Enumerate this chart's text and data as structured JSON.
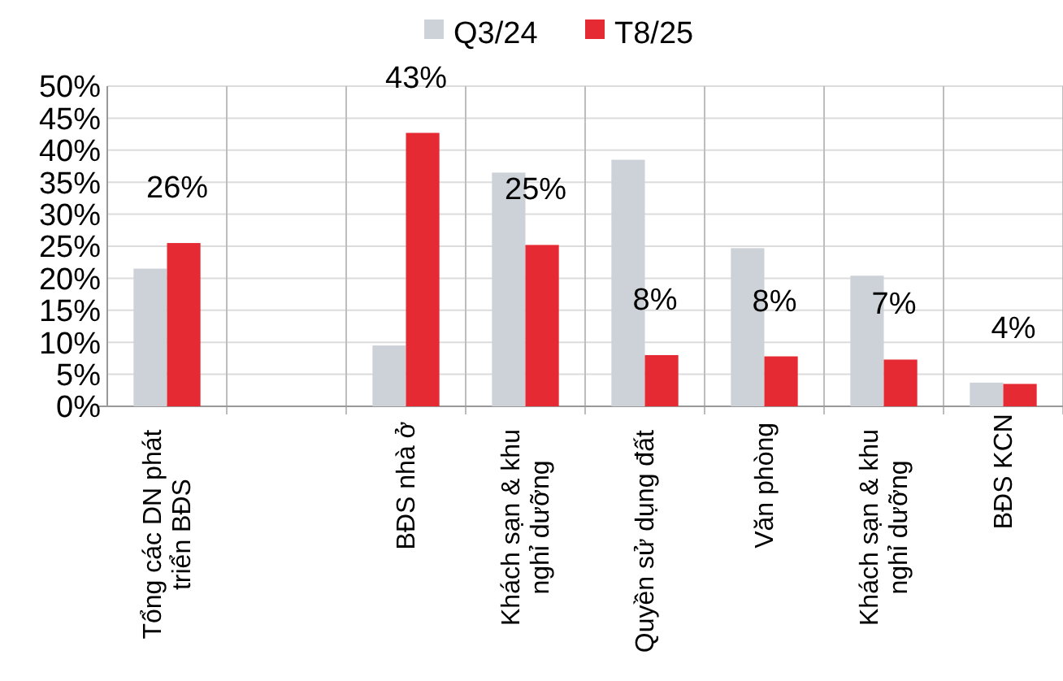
{
  "chart_data": {
    "type": "bar",
    "categories": [
      "Tổng các DN phát triển BĐS",
      null,
      "BĐS nhà ở",
      "Khách sạn & khu nghỉ dưỡng",
      "Quyền sử dụng đất",
      "Văn phòng",
      "Khách sạn & khu nghỉ dưỡng",
      "BĐS KCN"
    ],
    "series": [
      {
        "name": "Q3/24",
        "color": "#cdd1d8",
        "values": [
          21.5,
          null,
          9.5,
          36.5,
          38.5,
          24.7,
          20.4,
          3.7
        ]
      },
      {
        "name": "T8/25",
        "color": "#e52a33",
        "values": [
          25.5,
          null,
          42.7,
          25.2,
          8.0,
          7.8,
          7.3,
          3.5
        ],
        "value_labels": [
          "26%",
          null,
          "43%",
          "25%",
          "8%",
          "8%",
          "7%",
          "4%"
        ]
      }
    ],
    "ylim": [
      0,
      50
    ],
    "yticks": [
      {
        "value": 0,
        "label": "0%"
      },
      {
        "value": 5,
        "label": "5%"
      },
      {
        "value": 10,
        "label": "10%"
      },
      {
        "value": 15,
        "label": "15%"
      },
      {
        "value": 20,
        "label": "20%"
      },
      {
        "value": 25,
        "label": "25%"
      },
      {
        "value": 30,
        "label": "30%"
      },
      {
        "value": 35,
        "label": "35%"
      },
      {
        "value": 40,
        "label": "40%"
      },
      {
        "value": 45,
        "label": "45%"
      },
      {
        "value": 50,
        "label": "50%"
      }
    ],
    "grid": true,
    "legend": "top"
  }
}
